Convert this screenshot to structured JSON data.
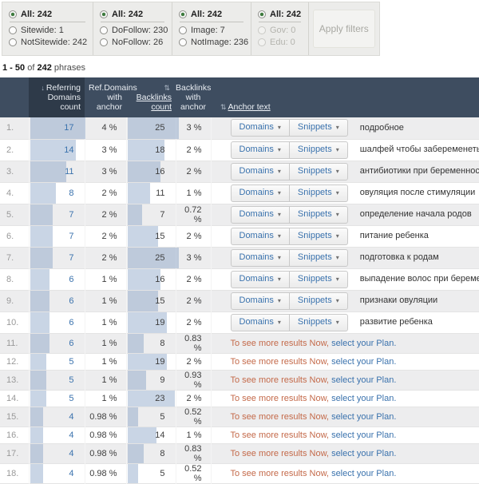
{
  "colors": {
    "header_bg": "#3e4d60",
    "header_sorted_bg": "#2e3a49",
    "bar_blue": "#c3d0e0",
    "link_blue": "#3a72ad",
    "promo_orange": "#c46a4a",
    "radio_green": "#3c7a3c",
    "filter_bg": "#ececea",
    "row_alt_bg": "#ededee"
  },
  "filters": {
    "apply_label": "Apply filters",
    "groups": [
      {
        "options": [
          {
            "label": "All: 242",
            "selected": true,
            "disabled": false
          },
          {
            "label": "Sitewide: 1",
            "selected": false,
            "disabled": false
          },
          {
            "label": "NotSitewide: 242",
            "selected": false,
            "disabled": false
          }
        ]
      },
      {
        "options": [
          {
            "label": "All: 242",
            "selected": true,
            "disabled": false
          },
          {
            "label": "DoFollow: 230",
            "selected": false,
            "disabled": false
          },
          {
            "label": "NoFollow: 26",
            "selected": false,
            "disabled": false
          }
        ]
      },
      {
        "options": [
          {
            "label": "All: 242",
            "selected": true,
            "disabled": false
          },
          {
            "label": "Image: 7",
            "selected": false,
            "disabled": false
          },
          {
            "label": "NotImage: 236",
            "selected": false,
            "disabled": false
          }
        ]
      },
      {
        "options": [
          {
            "label": "All: 242",
            "selected": true,
            "disabled": false
          },
          {
            "label": "Gov: 0",
            "selected": false,
            "disabled": true
          },
          {
            "label": "Edu: 0",
            "selected": false,
            "disabled": true
          }
        ]
      }
    ]
  },
  "pagination": {
    "range": "1 - 50",
    "of": "of",
    "total": "242",
    "unit": "phrases"
  },
  "table": {
    "icons": {
      "sort_desc": "↓",
      "sort_both": "⇅"
    },
    "headers": {
      "ref": "Referring Domains count",
      "ref_anchor": "Ref.Domains with anchor",
      "bl": "Backlinks count",
      "bl_anchor": "Backlinks with anchor",
      "anchor": "Anchor text"
    },
    "buttons": {
      "domains": "Domains",
      "snippets": "Snippets",
      "caret": "▾"
    },
    "promo": {
      "text": "To see more results Now,",
      "link": "select your Plan."
    },
    "rows": [
      {
        "num": "1",
        "ref": 17,
        "ref_pct": "4 %",
        "bl": 25,
        "bl_pct": "3 %",
        "anchor": "подробное"
      },
      {
        "num": "2",
        "ref": 14,
        "ref_pct": "3 %",
        "bl": 18,
        "bl_pct": "2 %",
        "anchor": "шалфей чтобы забеременеть"
      },
      {
        "num": "3",
        "ref": 11,
        "ref_pct": "3 %",
        "bl": 16,
        "bl_pct": "2 %",
        "anchor": "антибиотики при беременности"
      },
      {
        "num": "4",
        "ref": 8,
        "ref_pct": "2 %",
        "bl": 11,
        "bl_pct": "1 %",
        "anchor": "овуляция после стимуляции"
      },
      {
        "num": "5",
        "ref": 7,
        "ref_pct": "2 %",
        "bl": 7,
        "bl_pct": "0.72 %",
        "anchor": "определение начала родов"
      },
      {
        "num": "6",
        "ref": 7,
        "ref_pct": "2 %",
        "bl": 15,
        "bl_pct": "2 %",
        "anchor": "питание ребенка"
      },
      {
        "num": "7",
        "ref": 7,
        "ref_pct": "2 %",
        "bl": 25,
        "bl_pct": "3 %",
        "anchor": "подготовка к родам"
      },
      {
        "num": "8",
        "ref": 6,
        "ref_pct": "1 %",
        "bl": 16,
        "bl_pct": "2 %",
        "anchor": "выпадение волос при беременности"
      },
      {
        "num": "9",
        "ref": 6,
        "ref_pct": "1 %",
        "bl": 15,
        "bl_pct": "2 %",
        "anchor": "признаки овуляции"
      },
      {
        "num": "10",
        "ref": 6,
        "ref_pct": "1 %",
        "bl": 19,
        "bl_pct": "2 %",
        "anchor": "развитие ребенка"
      },
      {
        "num": "11",
        "ref": 6,
        "ref_pct": "1 %",
        "bl": 8,
        "bl_pct": "0.83 %",
        "promo": true
      },
      {
        "num": "12",
        "ref": 5,
        "ref_pct": "1 %",
        "bl": 19,
        "bl_pct": "2 %",
        "promo": true
      },
      {
        "num": "13",
        "ref": 5,
        "ref_pct": "1 %",
        "bl": 9,
        "bl_pct": "0.93 %",
        "promo": true
      },
      {
        "num": "14",
        "ref": 5,
        "ref_pct": "1 %",
        "bl": 23,
        "bl_pct": "2 %",
        "promo": true
      },
      {
        "num": "15",
        "ref": 4,
        "ref_pct": "0.98 %",
        "bl": 5,
        "bl_pct": "0.52 %",
        "promo": true
      },
      {
        "num": "16",
        "ref": 4,
        "ref_pct": "0.98 %",
        "bl": 14,
        "bl_pct": "1 %",
        "promo": true
      },
      {
        "num": "17",
        "ref": 4,
        "ref_pct": "0.98 %",
        "bl": 8,
        "bl_pct": "0.83 %",
        "promo": true
      },
      {
        "num": "18",
        "ref": 4,
        "ref_pct": "0.98 %",
        "bl": 5,
        "bl_pct": "0.52 %",
        "promo": true
      }
    ]
  }
}
